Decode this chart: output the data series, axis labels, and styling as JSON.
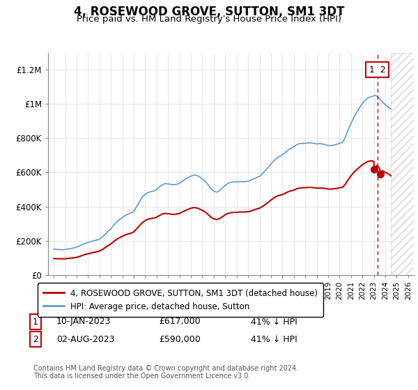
{
  "title": "4, ROSEWOOD GROVE, SUTTON, SM1 3DT",
  "subtitle": "Price paid vs. HM Land Registry's House Price Index (HPI)",
  "title_fontsize": 12,
  "subtitle_fontsize": 10,
  "ylabel_ticks": [
    "£0",
    "£200K",
    "£400K",
    "£600K",
    "£800K",
    "£1M",
    "£1.2M"
  ],
  "ytick_vals": [
    0,
    200000,
    400000,
    600000,
    800000,
    1000000,
    1200000
  ],
  "ylim": [
    0,
    1300000
  ],
  "xlim_start": 1994.5,
  "xlim_end": 2026.5,
  "hpi_color": "#5B9BD5",
  "price_color": "#C00000",
  "sale1_price": 617000,
  "sale1_x": 2023.04,
  "sale2_price": 590000,
  "sale2_x": 2023.6,
  "vline_x": 2023.3,
  "hatch_start": 2024.5,
  "legend_line1": "4, ROSEWOOD GROVE, SUTTON, SM1 3DT (detached house)",
  "legend_line2": "HPI: Average price, detached house, Sutton",
  "table_row1": [
    "1",
    "10-JAN-2023",
    "£617,000",
    "41% ↓ HPI"
  ],
  "table_row2": [
    "2",
    "02-AUG-2023",
    "£590,000",
    "41% ↓ HPI"
  ],
  "copyright": "Contains HM Land Registry data © Crown copyright and database right 2024.\nThis data is licensed under the Open Government Licence v3.0.",
  "hpi_data": [
    [
      1995.0,
      152000
    ],
    [
      1995.1,
      151000
    ],
    [
      1995.2,
      150000
    ],
    [
      1995.3,
      149500
    ],
    [
      1995.5,
      148000
    ],
    [
      1995.75,
      147000
    ],
    [
      1996.0,
      149000
    ],
    [
      1996.25,
      152000
    ],
    [
      1996.5,
      155000
    ],
    [
      1996.75,
      158000
    ],
    [
      1997.0,
      163000
    ],
    [
      1997.25,
      170000
    ],
    [
      1997.5,
      178000
    ],
    [
      1997.75,
      185000
    ],
    [
      1998.0,
      190000
    ],
    [
      1998.25,
      196000
    ],
    [
      1998.5,
      200000
    ],
    [
      1998.75,
      204000
    ],
    [
      1999.0,
      210000
    ],
    [
      1999.25,
      222000
    ],
    [
      1999.5,
      238000
    ],
    [
      1999.75,
      256000
    ],
    [
      2000.0,
      270000
    ],
    [
      2000.25,
      292000
    ],
    [
      2000.5,
      310000
    ],
    [
      2000.75,
      324000
    ],
    [
      2001.0,
      336000
    ],
    [
      2001.25,
      348000
    ],
    [
      2001.5,
      356000
    ],
    [
      2001.75,
      362000
    ],
    [
      2002.0,
      372000
    ],
    [
      2002.25,
      400000
    ],
    [
      2002.5,
      428000
    ],
    [
      2002.75,
      456000
    ],
    [
      2003.0,
      472000
    ],
    [
      2003.25,
      482000
    ],
    [
      2003.5,
      488000
    ],
    [
      2003.75,
      490000
    ],
    [
      2004.0,
      500000
    ],
    [
      2004.25,
      516000
    ],
    [
      2004.5,
      528000
    ],
    [
      2004.75,
      535000
    ],
    [
      2005.0,
      532000
    ],
    [
      2005.25,
      530000
    ],
    [
      2005.5,
      528000
    ],
    [
      2005.75,
      530000
    ],
    [
      2006.0,
      536000
    ],
    [
      2006.25,
      548000
    ],
    [
      2006.5,
      560000
    ],
    [
      2006.75,
      570000
    ],
    [
      2007.0,
      578000
    ],
    [
      2007.25,
      584000
    ],
    [
      2007.5,
      582000
    ],
    [
      2007.75,
      574000
    ],
    [
      2008.0,
      562000
    ],
    [
      2008.25,
      548000
    ],
    [
      2008.5,
      528000
    ],
    [
      2008.75,
      505000
    ],
    [
      2009.0,
      490000
    ],
    [
      2009.25,
      484000
    ],
    [
      2009.5,
      492000
    ],
    [
      2009.75,
      508000
    ],
    [
      2010.0,
      524000
    ],
    [
      2010.25,
      536000
    ],
    [
      2010.5,
      542000
    ],
    [
      2010.75,
      544000
    ],
    [
      2011.0,
      544000
    ],
    [
      2011.25,
      546000
    ],
    [
      2011.5,
      546000
    ],
    [
      2011.75,
      546000
    ],
    [
      2012.0,
      548000
    ],
    [
      2012.25,
      554000
    ],
    [
      2012.5,
      562000
    ],
    [
      2012.75,
      570000
    ],
    [
      2013.0,
      576000
    ],
    [
      2013.25,
      592000
    ],
    [
      2013.5,
      610000
    ],
    [
      2013.75,
      628000
    ],
    [
      2014.0,
      648000
    ],
    [
      2014.25,
      668000
    ],
    [
      2014.5,
      682000
    ],
    [
      2014.75,
      694000
    ],
    [
      2015.0,
      702000
    ],
    [
      2015.25,
      716000
    ],
    [
      2015.5,
      730000
    ],
    [
      2015.75,
      740000
    ],
    [
      2016.0,
      750000
    ],
    [
      2016.25,
      762000
    ],
    [
      2016.5,
      768000
    ],
    [
      2016.75,
      770000
    ],
    [
      2017.0,
      770000
    ],
    [
      2017.25,
      772000
    ],
    [
      2017.5,
      772000
    ],
    [
      2017.75,
      770000
    ],
    [
      2018.0,
      766000
    ],
    [
      2018.25,
      768000
    ],
    [
      2018.5,
      766000
    ],
    [
      2018.75,
      762000
    ],
    [
      2019.0,
      756000
    ],
    [
      2019.25,
      756000
    ],
    [
      2019.5,
      760000
    ],
    [
      2019.75,
      764000
    ],
    [
      2020.0,
      770000
    ],
    [
      2020.25,
      774000
    ],
    [
      2020.5,
      804000
    ],
    [
      2020.75,
      848000
    ],
    [
      2021.0,
      886000
    ],
    [
      2021.25,
      920000
    ],
    [
      2021.5,
      950000
    ],
    [
      2021.75,
      978000
    ],
    [
      2022.0,
      1002000
    ],
    [
      2022.25,
      1022000
    ],
    [
      2022.5,
      1036000
    ],
    [
      2022.75,
      1042000
    ],
    [
      2023.0,
      1048000
    ],
    [
      2023.1,
      1050000
    ],
    [
      2023.2,
      1048000
    ],
    [
      2023.3,
      1044000
    ],
    [
      2023.5,
      1030000
    ],
    [
      2023.75,
      1012000
    ],
    [
      2024.0,
      996000
    ],
    [
      2024.25,
      982000
    ],
    [
      2024.5,
      970000
    ]
  ],
  "price_data": [
    [
      1995.0,
      96000
    ],
    [
      1995.1,
      95500
    ],
    [
      1995.2,
      95000
    ],
    [
      1995.3,
      94800
    ],
    [
      1995.5,
      94500
    ],
    [
      1995.75,
      94000
    ],
    [
      1996.0,
      95000
    ],
    [
      1996.25,
      96500
    ],
    [
      1996.5,
      98000
    ],
    [
      1996.75,
      100000
    ],
    [
      1997.0,
      103000
    ],
    [
      1997.25,
      108000
    ],
    [
      1997.5,
      114000
    ],
    [
      1997.75,
      120000
    ],
    [
      1998.0,
      124000
    ],
    [
      1998.25,
      128000
    ],
    [
      1998.5,
      132000
    ],
    [
      1998.75,
      135000
    ],
    [
      1999.0,
      140000
    ],
    [
      1999.25,
      148000
    ],
    [
      1999.5,
      160000
    ],
    [
      1999.75,
      172000
    ],
    [
      2000.0,
      182000
    ],
    [
      2000.25,
      196000
    ],
    [
      2000.5,
      208000
    ],
    [
      2000.75,
      218000
    ],
    [
      2001.0,
      226000
    ],
    [
      2001.25,
      234000
    ],
    [
      2001.5,
      240000
    ],
    [
      2001.75,
      244000
    ],
    [
      2002.0,
      252000
    ],
    [
      2002.25,
      270000
    ],
    [
      2002.5,
      288000
    ],
    [
      2002.75,
      306000
    ],
    [
      2003.0,
      318000
    ],
    [
      2003.25,
      326000
    ],
    [
      2003.5,
      330000
    ],
    [
      2003.75,
      332000
    ],
    [
      2004.0,
      338000
    ],
    [
      2004.25,
      348000
    ],
    [
      2004.5,
      356000
    ],
    [
      2004.75,
      360000
    ],
    [
      2005.0,
      358000
    ],
    [
      2005.25,
      356000
    ],
    [
      2005.5,
      354000
    ],
    [
      2005.75,
      356000
    ],
    [
      2006.0,
      360000
    ],
    [
      2006.25,
      368000
    ],
    [
      2006.5,
      376000
    ],
    [
      2006.75,
      384000
    ],
    [
      2007.0,
      390000
    ],
    [
      2007.25,
      394000
    ],
    [
      2007.5,
      392000
    ],
    [
      2007.75,
      386000
    ],
    [
      2008.0,
      378000
    ],
    [
      2008.25,
      368000
    ],
    [
      2008.5,
      354000
    ],
    [
      2008.75,
      338000
    ],
    [
      2009.0,
      328000
    ],
    [
      2009.25,
      324000
    ],
    [
      2009.5,
      330000
    ],
    [
      2009.75,
      340000
    ],
    [
      2010.0,
      352000
    ],
    [
      2010.25,
      360000
    ],
    [
      2010.5,
      364000
    ],
    [
      2010.75,
      366000
    ],
    [
      2011.0,
      366000
    ],
    [
      2011.25,
      368000
    ],
    [
      2011.5,
      368000
    ],
    [
      2011.75,
      368000
    ],
    [
      2012.0,
      370000
    ],
    [
      2012.25,
      374000
    ],
    [
      2012.5,
      380000
    ],
    [
      2012.75,
      386000
    ],
    [
      2013.0,
      390000
    ],
    [
      2013.25,
      400000
    ],
    [
      2013.5,
      412000
    ],
    [
      2013.75,
      424000
    ],
    [
      2014.0,
      438000
    ],
    [
      2014.25,
      450000
    ],
    [
      2014.5,
      460000
    ],
    [
      2014.75,
      466000
    ],
    [
      2015.0,
      470000
    ],
    [
      2015.25,
      478000
    ],
    [
      2015.5,
      486000
    ],
    [
      2015.75,
      492000
    ],
    [
      2016.0,
      496000
    ],
    [
      2016.25,
      504000
    ],
    [
      2016.5,
      508000
    ],
    [
      2016.75,
      510000
    ],
    [
      2017.0,
      510000
    ],
    [
      2017.25,
      512000
    ],
    [
      2017.5,
      512000
    ],
    [
      2017.75,
      510000
    ],
    [
      2018.0,
      508000
    ],
    [
      2018.25,
      508000
    ],
    [
      2018.5,
      508000
    ],
    [
      2018.75,
      506000
    ],
    [
      2019.0,
      502000
    ],
    [
      2019.25,
      502000
    ],
    [
      2019.5,
      504000
    ],
    [
      2019.75,
      506000
    ],
    [
      2020.0,
      510000
    ],
    [
      2020.25,
      512000
    ],
    [
      2020.5,
      530000
    ],
    [
      2020.75,
      556000
    ],
    [
      2021.0,
      580000
    ],
    [
      2021.25,
      600000
    ],
    [
      2021.5,
      616000
    ],
    [
      2021.75,
      630000
    ],
    [
      2022.0,
      644000
    ],
    [
      2022.25,
      656000
    ],
    [
      2022.5,
      664000
    ],
    [
      2022.75,
      668000
    ],
    [
      2023.0,
      664000
    ],
    [
      2023.04,
      617000
    ],
    [
      2023.25,
      640000
    ],
    [
      2023.5,
      624000
    ],
    [
      2023.6,
      590000
    ],
    [
      2023.75,
      610000
    ],
    [
      2024.0,
      600000
    ],
    [
      2024.25,
      592000
    ],
    [
      2024.5,
      580000
    ]
  ]
}
